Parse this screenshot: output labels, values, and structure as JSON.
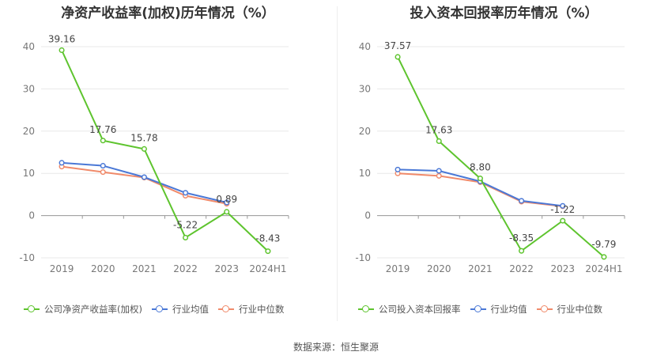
{
  "source": "数据来源：恒生聚源",
  "colors": {
    "company": "#5ec42e",
    "avg": "#4a78d6",
    "median": "#f08a6a",
    "grid": "#e8e8e8",
    "axis": "#999999"
  },
  "charts": [
    {
      "title": "净资产收益率(加权)历年情况（%）",
      "legend": [
        "公司净资产收益率(加权)",
        "行业均值",
        "行业中位数"
      ]
    },
    {
      "title": "投入资本回报率历年情况（%）",
      "legend": [
        "公司投入资本回报率",
        "行业均值",
        "行业中位数"
      ]
    }
  ],
  "chart_data": [
    {
      "type": "line",
      "title": "净资产收益率(加权)历年情况（%）",
      "categories": [
        "2019",
        "2020",
        "2021",
        "2022",
        "2023",
        "2024H1"
      ],
      "ylim": [
        -10,
        40
      ],
      "yticks": [
        -10,
        0,
        10,
        20,
        30,
        40
      ],
      "grid": true,
      "legend_position": "bottom",
      "series": [
        {
          "name": "公司净资产收益率(加权)",
          "values": [
            39.16,
            17.76,
            15.78,
            -5.22,
            0.89,
            -8.43
          ],
          "labels": [
            "39.16",
            "17.76",
            "15.78",
            "-5.22",
            "0.89",
            "-8.43"
          ]
        },
        {
          "name": "行业均值",
          "values": [
            12.5,
            11.8,
            9.1,
            5.4,
            3.1,
            null
          ]
        },
        {
          "name": "行业中位数",
          "values": [
            11.6,
            10.3,
            9.0,
            4.7,
            2.8,
            null
          ]
        }
      ]
    },
    {
      "type": "line",
      "title": "投入资本回报率历年情况（%）",
      "categories": [
        "2019",
        "2020",
        "2021",
        "2022",
        "2023",
        "2024H1"
      ],
      "ylim": [
        -10,
        40
      ],
      "yticks": [
        -10,
        0,
        10,
        20,
        30,
        40
      ],
      "grid": true,
      "legend_position": "bottom",
      "series": [
        {
          "name": "公司投入资本回报率",
          "values": [
            37.57,
            17.63,
            8.8,
            -8.35,
            -1.22,
            -9.79
          ],
          "labels": [
            "37.57",
            "17.63",
            "8.80",
            "-8.35",
            "-1.22",
            "-9.79"
          ]
        },
        {
          "name": "行业均值",
          "values": [
            10.9,
            10.6,
            8.1,
            3.5,
            2.3,
            null
          ]
        },
        {
          "name": "行业中位数",
          "values": [
            10.0,
            9.4,
            7.9,
            3.3,
            2.2,
            null
          ]
        }
      ]
    }
  ]
}
